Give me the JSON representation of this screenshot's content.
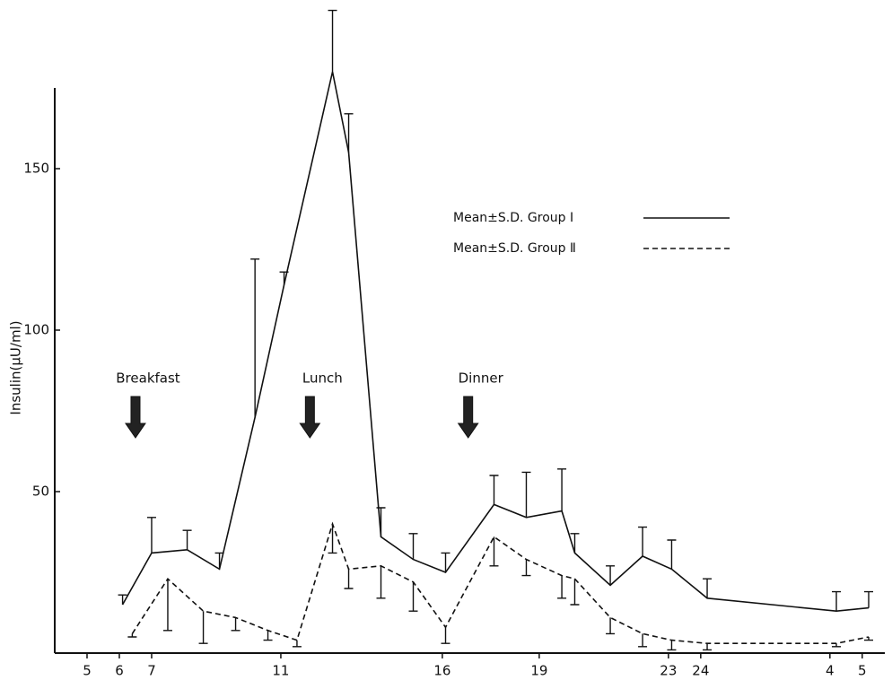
{
  "chart_data": {
    "type": "line",
    "ylabel": "Insulin(μU/ml)",
    "xlim": [
      4,
      29.7
    ],
    "xticks": [
      5,
      6,
      7,
      11,
      16,
      19,
      23,
      24,
      {
        "value": 28,
        "label": "4"
      },
      {
        "value": 29,
        "label": "5"
      }
    ],
    "ylim": [
      0,
      175
    ],
    "yticks": [
      50,
      100,
      150
    ],
    "legend": "upper right",
    "annotations": [
      {
        "text": "Breakfast",
        "x": 6.5
      },
      {
        "text": "Lunch",
        "x": 11.9
      },
      {
        "text": "Dinner",
        "x": 16.8
      }
    ],
    "series": [
      {
        "name": "Mean±S.D. Group Ⅰ",
        "color": "#111111",
        "style": "solid",
        "error_direction": "up",
        "x": [
          6.1,
          7.0,
          8.1,
          9.1,
          10.2,
          11.1,
          12.6,
          13.1,
          14.1,
          15.1,
          16.1,
          17.6,
          18.6,
          19.7,
          20.1,
          21.2,
          22.2,
          23.1,
          24.2,
          28.2,
          29.2
        ],
        "values": [
          15,
          31,
          32,
          26,
          73,
          114,
          180,
          155,
          36,
          29,
          25,
          46,
          42,
          44,
          31,
          21,
          30,
          26,
          17,
          13,
          14
        ],
        "errors": [
          3,
          11,
          6,
          5,
          49,
          4,
          19,
          12,
          9,
          8,
          6,
          9,
          14,
          13,
          6,
          6,
          9,
          9,
          6,
          6,
          5
        ]
      },
      {
        "name": "Mean±S.D. Group Ⅱ",
        "color": "#111111",
        "style": "dashed",
        "error_direction": "down",
        "x": [
          6.4,
          7.5,
          8.6,
          9.6,
          10.6,
          11.5,
          12.6,
          13.1,
          14.1,
          15.1,
          16.1,
          17.6,
          18.6,
          19.7,
          20.1,
          21.2,
          22.2,
          23.1,
          24.2,
          28.2,
          29.2
        ],
        "values": [
          6,
          23,
          13,
          11,
          7,
          4,
          40,
          26,
          27,
          22,
          8,
          36,
          29,
          24,
          23,
          11,
          6,
          4,
          3,
          3,
          5
        ],
        "errors": [
          1,
          16,
          10,
          4,
          3,
          2,
          9,
          6,
          10,
          9,
          5,
          9,
          5,
          7,
          8,
          5,
          4,
          3,
          2,
          1,
          1
        ]
      }
    ]
  }
}
